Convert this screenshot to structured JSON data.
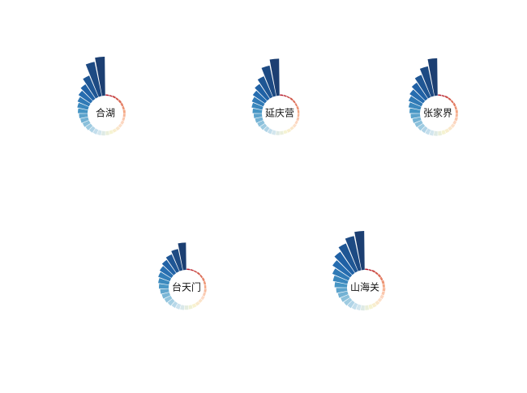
{
  "chart_data": [
    {
      "type": "radial-bar",
      "title": "合湖",
      "ylim": [
        0,
        100
      ],
      "values": [
        3,
        3,
        4,
        4,
        5,
        5,
        5,
        6,
        6,
        6,
        7,
        7,
        8,
        8,
        9,
        10,
        11,
        12,
        13,
        14,
        16,
        18,
        20,
        22,
        25,
        28,
        32,
        38,
        45,
        60,
        90,
        100
      ],
      "color_scale": [
        "#b2182b",
        "#d6604d",
        "#f4a582",
        "#fddbc7",
        "#f7f4d0",
        "#d1e5f0",
        "#92c5de",
        "#4393c3",
        "#2166ac",
        "#1c3f72"
      ]
    },
    {
      "type": "radial-bar",
      "title": "延庆营",
      "ylim": [
        0,
        100
      ],
      "values": [
        3,
        3,
        3,
        4,
        4,
        4,
        5,
        5,
        5,
        6,
        6,
        7,
        7,
        8,
        8,
        9,
        10,
        11,
        12,
        13,
        15,
        17,
        19,
        21,
        24,
        28,
        32,
        38,
        46,
        58,
        80,
        95
      ],
      "color_scale": [
        "#b2182b",
        "#d6604d",
        "#f4a582",
        "#fddbc7",
        "#f7f4d0",
        "#d1e5f0",
        "#92c5de",
        "#4393c3",
        "#2166ac",
        "#1c3f72"
      ]
    },
    {
      "type": "radial-bar",
      "title": "张家界",
      "ylim": [
        0,
        100
      ],
      "values": [
        3,
        3,
        4,
        4,
        4,
        5,
        5,
        6,
        6,
        7,
        7,
        8,
        8,
        9,
        10,
        11,
        12,
        13,
        14,
        15,
        17,
        19,
        21,
        24,
        27,
        31,
        36,
        42,
        50,
        62,
        78,
        96
      ],
      "color_scale": [
        "#b2182b",
        "#d6604d",
        "#f4a582",
        "#fddbc7",
        "#f7f4d0",
        "#d1e5f0",
        "#92c5de",
        "#4393c3",
        "#2166ac",
        "#1c3f72"
      ]
    },
    {
      "type": "radial-bar",
      "title": "台天门",
      "ylim": [
        0,
        100
      ],
      "values": [
        3,
        3,
        3,
        4,
        4,
        5,
        5,
        5,
        6,
        6,
        7,
        7,
        8,
        9,
        10,
        11,
        12,
        13,
        14,
        16,
        18,
        20,
        22,
        25,
        28,
        32,
        36,
        42,
        48,
        56,
        70
      ],
      "color_scale": [
        "#b2182b",
        "#d6604d",
        "#f4a582",
        "#fddbc7",
        "#f7f4d0",
        "#d1e5f0",
        "#92c5de",
        "#4393c3",
        "#2166ac",
        "#1c3f72"
      ]
    },
    {
      "type": "radial-bar",
      "title": "山海关",
      "ylim": [
        0,
        100
      ],
      "values": [
        3,
        3,
        4,
        4,
        5,
        5,
        6,
        6,
        7,
        7,
        8,
        8,
        9,
        10,
        11,
        12,
        13,
        14,
        16,
        18,
        20,
        22,
        25,
        28,
        32,
        38,
        45,
        55,
        66,
        78,
        90,
        100
      ],
      "color_scale": [
        "#b2182b",
        "#d6604d",
        "#f4a582",
        "#fddbc7",
        "#f7f4d0",
        "#d1e5f0",
        "#92c5de",
        "#4393c3",
        "#2166ac",
        "#1c3f72"
      ]
    }
  ]
}
